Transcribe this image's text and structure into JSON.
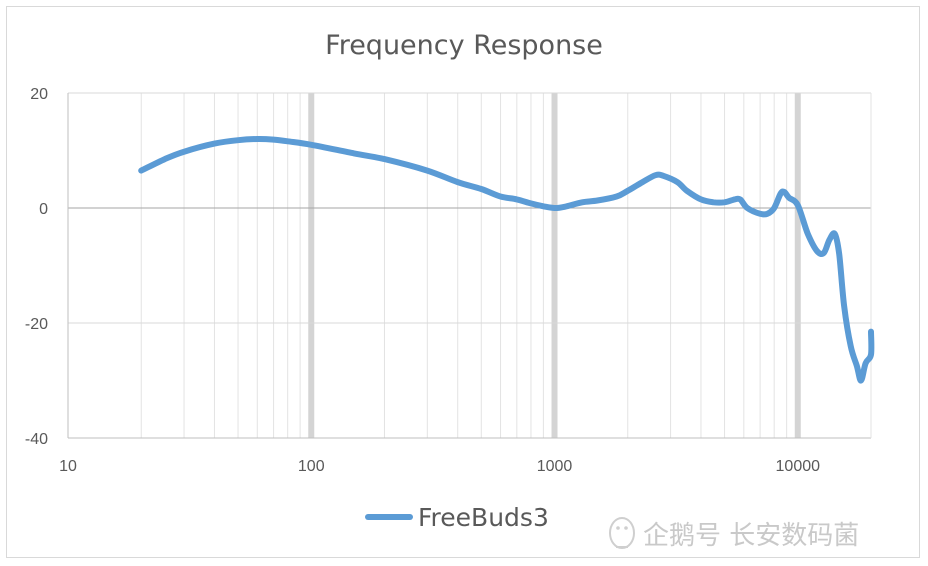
{
  "chart_data": {
    "type": "line",
    "title": "Frequency Response",
    "xscale": "log",
    "xlim": [
      10,
      20000
    ],
    "ylim": [
      -40,
      20
    ],
    "x_ticks": [
      "10",
      "100",
      "1000",
      "10000"
    ],
    "y_ticks": [
      "20",
      "0",
      "-20",
      "-40"
    ],
    "grid": true,
    "legend": "bottom",
    "series": [
      {
        "name": "FreeBuds3",
        "color": "#5b9bd5",
        "points": [
          [
            20,
            6.5
          ],
          [
            25,
            8.5
          ],
          [
            30,
            9.8
          ],
          [
            40,
            11.2
          ],
          [
            50,
            11.8
          ],
          [
            60,
            12.0
          ],
          [
            70,
            11.9
          ],
          [
            80,
            11.6
          ],
          [
            100,
            11.0
          ],
          [
            150,
            9.5
          ],
          [
            200,
            8.5
          ],
          [
            300,
            6.5
          ],
          [
            400,
            4.5
          ],
          [
            500,
            3.3
          ],
          [
            600,
            2.0
          ],
          [
            700,
            1.5
          ],
          [
            800,
            0.8
          ],
          [
            900,
            0.3
          ],
          [
            1000,
            0.0
          ],
          [
            1100,
            0.2
          ],
          [
            1300,
            1.0
          ],
          [
            1500,
            1.3
          ],
          [
            1800,
            2.0
          ],
          [
            2000,
            3.0
          ],
          [
            2300,
            4.5
          ],
          [
            2600,
            5.7
          ],
          [
            2800,
            5.6
          ],
          [
            3200,
            4.5
          ],
          [
            3500,
            3.0
          ],
          [
            4000,
            1.5
          ],
          [
            4500,
            1.0
          ],
          [
            5000,
            1.0
          ],
          [
            5500,
            1.5
          ],
          [
            5800,
            1.5
          ],
          [
            6200,
            0.0
          ],
          [
            7000,
            -1.0
          ],
          [
            7500,
            -1.0
          ],
          [
            8000,
            0.0
          ],
          [
            8500,
            2.5
          ],
          [
            8800,
            2.8
          ],
          [
            9200,
            1.8
          ],
          [
            10000,
            0.5
          ],
          [
            11000,
            -4.5
          ],
          [
            12000,
            -7.5
          ],
          [
            12800,
            -7.8
          ],
          [
            13500,
            -5.5
          ],
          [
            14200,
            -4.5
          ],
          [
            14800,
            -8.0
          ],
          [
            15500,
            -17.0
          ],
          [
            16500,
            -24.0
          ],
          [
            17500,
            -27.5
          ],
          [
            18200,
            -30.0
          ],
          [
            19000,
            -27.0
          ],
          [
            20000,
            -25.5
          ],
          [
            21000,
            -21.5
          ]
        ]
      }
    ]
  },
  "watermark": {
    "text": "企鹅号 长安数码菌",
    "icon": "penguin-icon"
  }
}
